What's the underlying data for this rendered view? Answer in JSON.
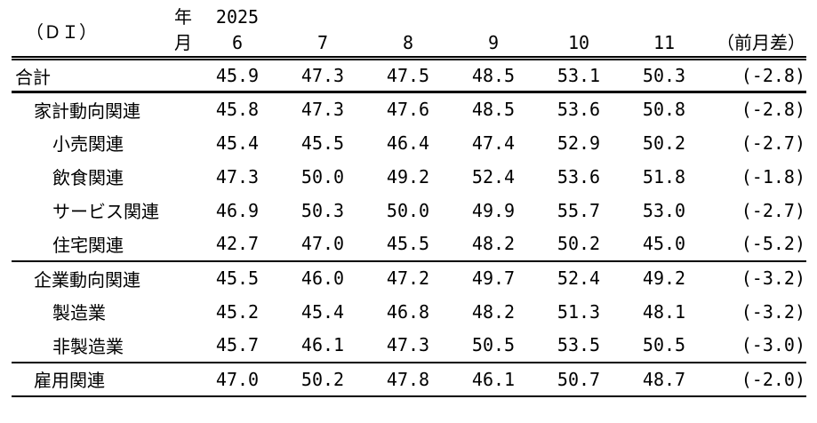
{
  "table": {
    "corner_label": "（ＤＩ）",
    "year_row_label": "年",
    "month_row_label": "月",
    "year_value": "2025",
    "month_headers": [
      "6",
      "7",
      "8",
      "9",
      "10",
      "11"
    ],
    "diff_header": "（前月差）",
    "rows": [
      {
        "label": "合計",
        "indent": 0,
        "values": [
          "45.9",
          "47.3",
          "47.5",
          "48.5",
          "53.1",
          "50.3"
        ],
        "diff": "(-2.8)"
      },
      {
        "label": "家計動向関連",
        "indent": 1,
        "values": [
          "45.8",
          "47.3",
          "47.6",
          "48.5",
          "53.6",
          "50.8"
        ],
        "diff": "(-2.8)"
      },
      {
        "label": "小売関連",
        "indent": 2,
        "values": [
          "45.4",
          "45.5",
          "46.4",
          "47.4",
          "52.9",
          "50.2"
        ],
        "diff": "(-2.7)"
      },
      {
        "label": "飲食関連",
        "indent": 2,
        "values": [
          "47.3",
          "50.0",
          "49.2",
          "52.4",
          "53.6",
          "51.8"
        ],
        "diff": "(-1.8)"
      },
      {
        "label": "サービス関連",
        "indent": 2,
        "values": [
          "46.9",
          "50.3",
          "50.0",
          "49.9",
          "55.7",
          "53.0"
        ],
        "diff": "(-2.7)"
      },
      {
        "label": "住宅関連",
        "indent": 2,
        "values": [
          "42.7",
          "47.0",
          "45.5",
          "48.2",
          "50.2",
          "45.0"
        ],
        "diff": "(-5.2)"
      },
      {
        "label": "企業動向関連",
        "indent": 1,
        "values": [
          "45.5",
          "46.0",
          "47.2",
          "49.7",
          "52.4",
          "49.2"
        ],
        "diff": "(-3.2)"
      },
      {
        "label": "製造業",
        "indent": 2,
        "values": [
          "45.2",
          "45.4",
          "46.8",
          "48.2",
          "51.3",
          "48.1"
        ],
        "diff": "(-3.2)"
      },
      {
        "label": "非製造業",
        "indent": 2,
        "values": [
          "45.7",
          "46.1",
          "47.3",
          "50.5",
          "53.5",
          "50.5"
        ],
        "diff": "(-3.0)"
      },
      {
        "label": "雇用関連",
        "indent": 1,
        "values": [
          "47.0",
          "50.2",
          "47.8",
          "46.1",
          "50.7",
          "48.7"
        ],
        "diff": "(-2.0)"
      }
    ],
    "colors": {
      "text": "#000000",
      "background": "#ffffff",
      "rule": "#000000"
    }
  }
}
